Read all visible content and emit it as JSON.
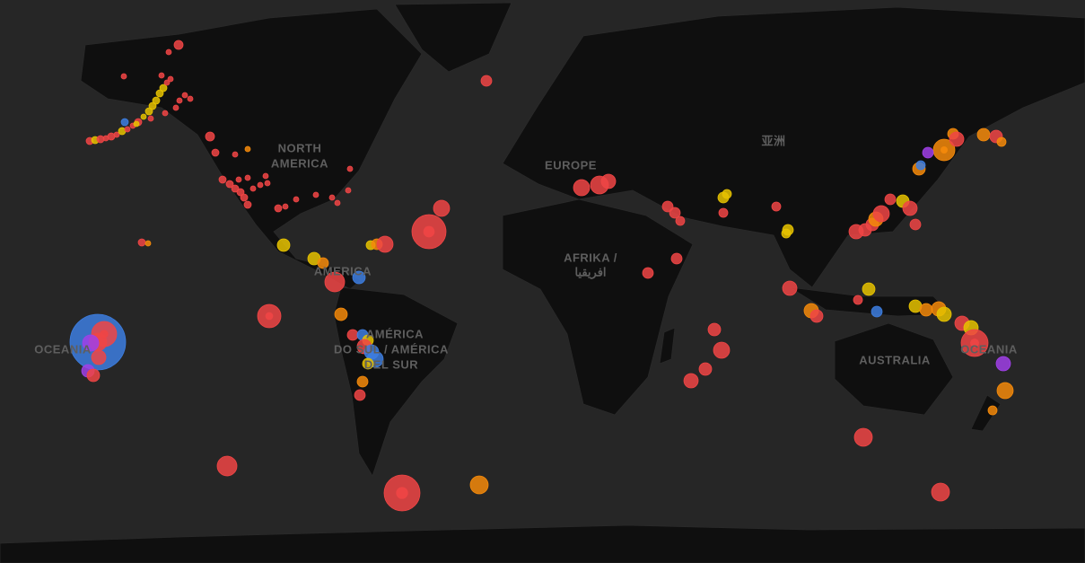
{
  "map": {
    "labels": {
      "north_america": [
        "NORTH",
        "AMERICA"
      ],
      "central_america": [
        "AMERICA"
      ],
      "europe": [
        "EUROPE"
      ],
      "asia": [
        "亚洲"
      ],
      "africa": [
        "AFRIKA /",
        "افريقيا"
      ],
      "south_america": [
        "AMÉRICA",
        "DO SUL / AMÉRICA",
        "DEL SUR"
      ],
      "australia": [
        "AUSTRALIA"
      ],
      "oceania_west": [
        "OCEANIA"
      ],
      "oceania_east": [
        "OCEANIA"
      ]
    }
  }
}
